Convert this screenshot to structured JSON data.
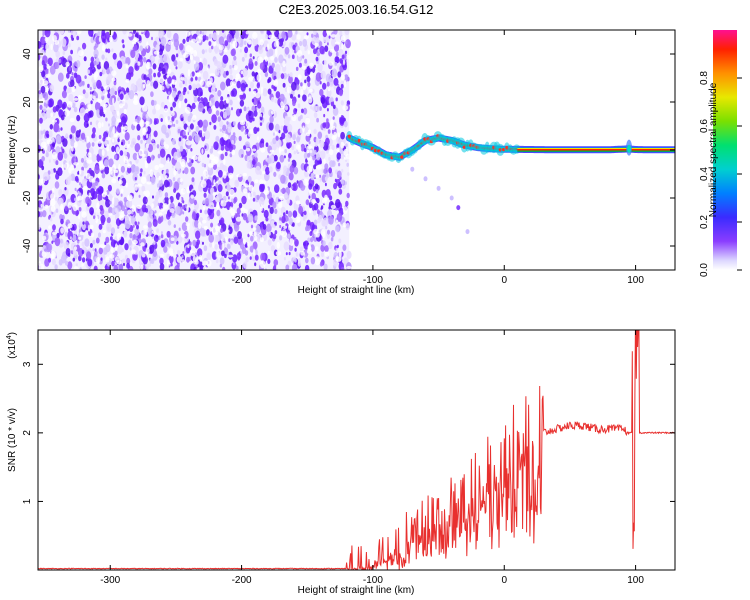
{
  "title": "C2E3.2025.003.16.54.G12",
  "chart_data": [
    {
      "type": "heatmap",
      "name": "spectrogram",
      "xlabel": "Height of straight line (km)",
      "ylabel": "Frequency (Hz)",
      "xlim": [
        -355,
        130
      ],
      "ylim": [
        -50,
        50
      ],
      "xticks": [
        -300,
        -200,
        -100,
        0,
        100
      ],
      "xtick_labels": [
        "-300",
        "-200",
        "-100",
        "0",
        "100"
      ],
      "yticks": [
        40,
        20,
        0,
        -20,
        -40
      ],
      "ytick_labels": [
        "40",
        "20",
        "0",
        "-20",
        "-40"
      ],
      "colorbar": {
        "label": "Normalized spectral amplitude",
        "range": [
          0,
          1
        ],
        "ticks": [
          0.0,
          0.2,
          0.4,
          0.6,
          0.8
        ],
        "tick_labels": [
          "0.0",
          "0.2",
          "0.4",
          "0.6",
          "0.8"
        ]
      },
      "noise_region_x": [
        -355,
        -118
      ],
      "signal_trace": {
        "x": [
          -118,
          -110,
          -100,
          -90,
          -80,
          -70,
          -60,
          -50,
          -40,
          -30,
          -20,
          -10,
          0,
          20,
          40,
          60,
          80,
          95,
          100,
          110,
          130
        ],
        "y": [
          5,
          3,
          1,
          -2,
          -3,
          0,
          4,
          5,
          4,
          2,
          1,
          0.5,
          0.3,
          0.2,
          0.1,
          0.1,
          0.1,
          0.5,
          0.2,
          0.1,
          0.1
        ]
      },
      "secondary_trace": {
        "x": [
          -70,
          -60,
          -50,
          -40,
          -35,
          -28
        ],
        "y": [
          -8,
          -12,
          -16,
          -20,
          -24,
          -34
        ]
      }
    },
    {
      "type": "line",
      "name": "snr",
      "xlabel": "Height of straight line (km)",
      "ylabel": "SNR (10 * v/v)",
      "y_multiplier_label": "(x10",
      "y_multiplier_exp": "4",
      "y_multiplier_close": ")",
      "xlim": [
        -355,
        130
      ],
      "ylim": [
        0,
        3.5
      ],
      "xticks": [
        -300,
        -200,
        -100,
        0,
        100
      ],
      "xtick_labels": [
        "-300",
        "-200",
        "-100",
        "0",
        "100"
      ],
      "yticks": [
        1,
        2,
        3
      ],
      "ytick_labels": [
        "1",
        "2",
        "3"
      ],
      "color": "#e8302e",
      "envelope": {
        "x": [
          -355,
          -120,
          -105,
          -100,
          -90,
          -80,
          -70,
          -60,
          -50,
          -40,
          -30,
          -20,
          -10,
          0,
          10,
          20,
          30,
          40,
          50,
          60,
          70,
          80,
          90,
          95,
          100,
          105,
          110,
          130
        ],
        "y": [
          0.02,
          0.02,
          0.04,
          0.1,
          0.2,
          0.35,
          0.45,
          0.6,
          0.7,
          0.85,
          0.95,
          1.15,
          1.35,
          1.55,
          1.75,
          1.9,
          2.0,
          2.05,
          2.1,
          2.1,
          2.05,
          2.05,
          2.05,
          2.0,
          2.0,
          2.0,
          2.0,
          2.0
        ]
      },
      "spike": {
        "x": 100,
        "ymax": 3.6,
        "ymin": 0.3
      }
    }
  ],
  "colors": {
    "noise": "#6a1cff",
    "snr_line": "#e8302e",
    "axes": "#000000"
  }
}
